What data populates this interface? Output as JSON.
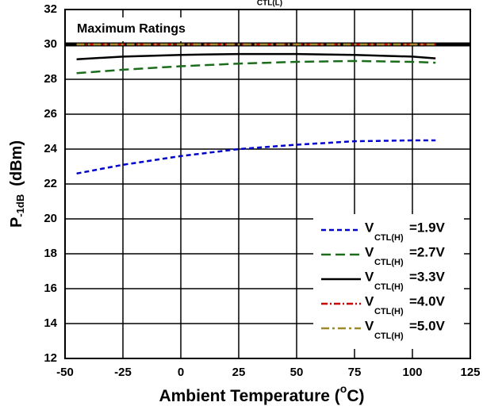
{
  "chart_data": {
    "type": "line",
    "title": "CTL(L)",
    "xlabel_parts": [
      "Ambient Temperature (",
      "o",
      "C)"
    ],
    "ylabel_parts": [
      "P",
      "-1dB",
      "(dBm)"
    ],
    "annotation": "Maximum Ratings",
    "max_rating": 30,
    "x": [
      -45,
      -25,
      0,
      25,
      50,
      75,
      100,
      110
    ],
    "legend_symbol": {
      "main": "V",
      "sub": "CTL(H)"
    },
    "series": [
      {
        "name": "=1.9V",
        "color": "#0000cc",
        "dash": "6,4",
        "values": [
          22.6,
          23.1,
          23.6,
          24.0,
          24.25,
          24.45,
          24.5,
          24.5
        ]
      },
      {
        "name": "=2.7V",
        "color": "#1b6d1b",
        "dash": "12,6",
        "values": [
          28.35,
          28.55,
          28.75,
          28.9,
          29.0,
          29.05,
          29.0,
          28.95
        ]
      },
      {
        "name": "=3.3V",
        "color": "#000000",
        "dash": "none",
        "values": [
          29.15,
          29.3,
          29.4,
          29.45,
          29.45,
          29.4,
          29.3,
          29.2
        ]
      },
      {
        "name": "=4.0V",
        "color": "#cc0000",
        "dash": "8,3,2,3",
        "values": [
          30,
          30,
          30,
          30,
          30,
          30,
          30,
          30
        ]
      },
      {
        "name": "=5.0V",
        "color": "#9c8a2c",
        "dash": "10,4,3,4",
        "values": [
          30,
          30,
          30,
          30,
          30,
          30,
          30,
          30
        ]
      }
    ],
    "xlim": [
      -50,
      125
    ],
    "xticks": [
      -50,
      -25,
      0,
      25,
      50,
      75,
      100,
      125
    ],
    "ylim": [
      12,
      32
    ],
    "yticks": [
      12,
      14,
      16,
      18,
      20,
      22,
      24,
      26,
      28,
      30,
      32
    ],
    "grid": true,
    "legend_position": "lower-right"
  }
}
